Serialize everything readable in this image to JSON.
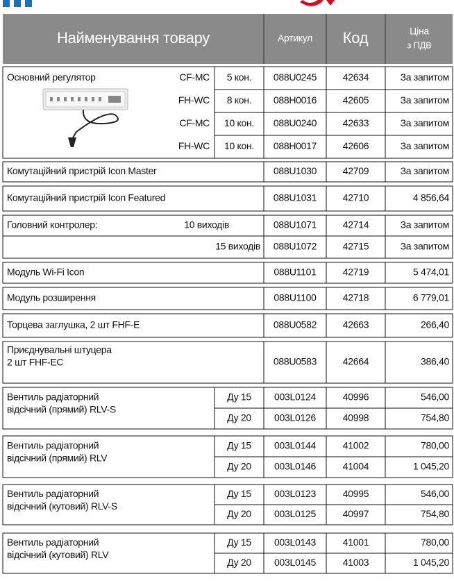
{
  "header": {
    "name": "Найменування товару",
    "article": "Артикул",
    "code": "Код",
    "price": [
      "Ціна",
      "з ПДВ"
    ]
  },
  "groups": [
    {
      "name": "Основний регулятор",
      "items": [
        {
          "model": "CF-MC",
          "option": "5 кон.",
          "article": "088U0245",
          "code": "42634",
          "price": "За запитом"
        },
        {
          "model": "FH-WC",
          "option": "8 кон.",
          "article": "088H0016",
          "code": "42605",
          "price": "За запитом"
        },
        {
          "model": "CF-MC",
          "option": "10 кон.",
          "article": "088U0240",
          "code": "42633",
          "price": "За запитом"
        },
        {
          "model": "FH-WC",
          "option": "10 кон.",
          "article": "088H0017",
          "code": "42606",
          "price": "За запитом"
        }
      ]
    },
    {
      "name": "Комутаційний пристрій Icon Master",
      "items": [
        {
          "article": "088U1030",
          "code": "42709",
          "price": "За запитом"
        }
      ]
    },
    {
      "name": "Комутаційний пристрій Icon Featured",
      "items": [
        {
          "article": "088U1031",
          "code": "42710",
          "price": "4 856,64"
        }
      ]
    },
    {
      "name": "Головний контролер:",
      "items": [
        {
          "model": "10 виходів",
          "article": "088U1071",
          "code": "42714",
          "price": "За запитом"
        },
        {
          "model": "15 виходів",
          "article": "088U1072",
          "code": "42715",
          "price": "За запитом"
        }
      ]
    },
    {
      "name": "Модуль Wi-Fi Icon",
      "items": [
        {
          "article": "088U1101",
          "code": "42719",
          "price": "5 474,01"
        }
      ]
    },
    {
      "name": "Модуль розширення",
      "items": [
        {
          "article": "088U1100",
          "code": "42718",
          "price": "6 779,01"
        }
      ]
    },
    {
      "name": "Торцева заглушка, 2 шт FHF-E",
      "items": [
        {
          "article": "088U0582",
          "code": "42663",
          "price": "266,40"
        }
      ]
    },
    {
      "name": [
        "Приєднувальні штуцера",
        "2 шт FHF-EC"
      ],
      "items": [
        {
          "article": "088U0583",
          "code": "42664",
          "price": "386,40"
        }
      ]
    },
    {
      "name": [
        "Вентиль радіаторний",
        "відсічний (прямий) RLV-S"
      ],
      "items": [
        {
          "option": "Ду 15",
          "article": "003L0124",
          "code": "40996",
          "price": "546,00"
        },
        {
          "option": "Ду 20",
          "article": "003L0126",
          "code": "40998",
          "price": "754,80"
        }
      ]
    },
    {
      "name": [
        "Вентиль радіаторний",
        "відсічний (прямий) RLV"
      ],
      "items": [
        {
          "option": "Ду 15",
          "article": "003L0144",
          "code": "41002",
          "price": "780,00"
        },
        {
          "option": "Ду 20",
          "article": "003L0146",
          "code": "41004",
          "price": "1 045,20"
        }
      ]
    },
    {
      "name": [
        "Вентиль радіаторний",
        "відсічний (кутовий) RLV-S"
      ],
      "items": [
        {
          "option": "Ду 15",
          "article": "003L0123",
          "code": "40995",
          "price": "546,00"
        },
        {
          "option": "Ду 20",
          "article": "003L0125",
          "code": "40997",
          "price": "754,80"
        }
      ]
    },
    {
      "name": [
        "Вентиль радіаторний",
        "відсічний (кутовий) RLV"
      ],
      "items": [
        {
          "option": "Ду 15",
          "article": "003L0143",
          "code": "41001",
          "price": "780,00"
        },
        {
          "option": "Ду 20",
          "article": "003L0145",
          "code": "41003",
          "price": "1 045,20"
        }
      ]
    }
  ]
}
